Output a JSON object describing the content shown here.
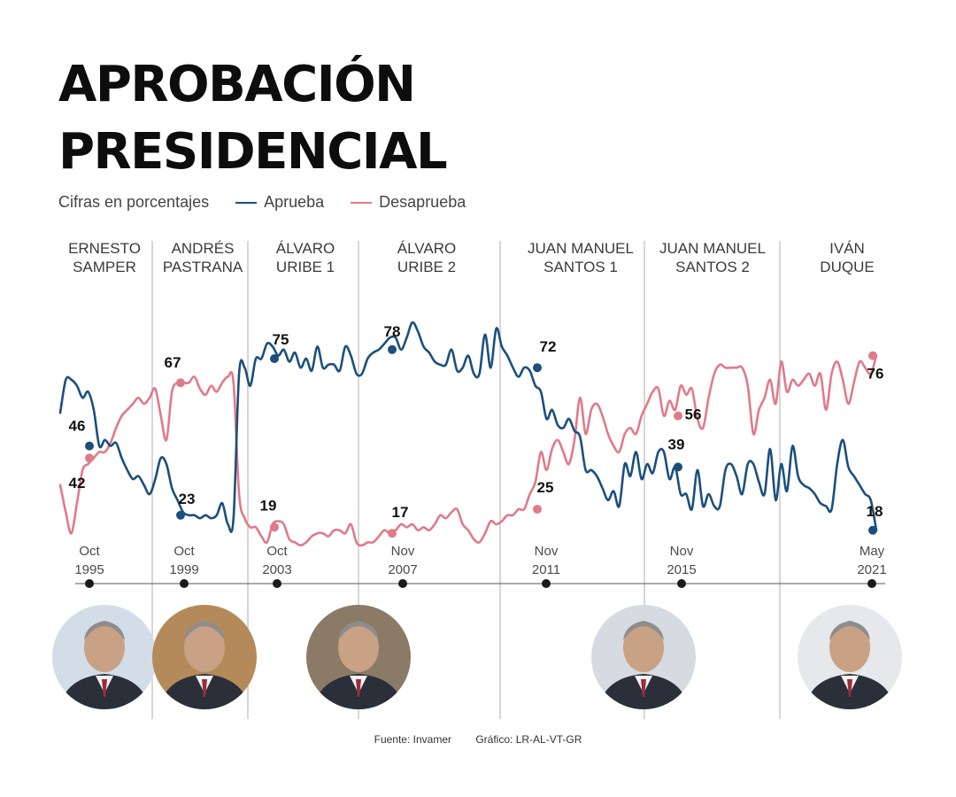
{
  "header": {
    "title_line1": "APROBACIÓN",
    "title_line2": "PRESIDENCIAL"
  },
  "legend": {
    "units": "Cifras en porcentajes",
    "approve": "Aprueba",
    "disapprove": "Desaprueba"
  },
  "colors": {
    "approve": "#1c4f7c",
    "disapprove": "#e07a8a",
    "grid": "#9a9a9a",
    "axis": "#555555"
  },
  "presidents": [
    {
      "line1": "ERNESTO",
      "line2": "SAMPER"
    },
    {
      "line1": "ANDRÉS",
      "line2": "PASTRANA"
    },
    {
      "line1": "ÁLVARO",
      "line2": "URIBE 1"
    },
    {
      "line1": "ÁLVARO",
      "line2": "URIBE 2"
    },
    {
      "line1": "JUAN MANUEL",
      "line2": "SANTOS 1"
    },
    {
      "line1": "JUAN MANUEL",
      "line2": "SANTOS 2"
    },
    {
      "line1": "IVÁN",
      "line2": "DUQUE"
    }
  ],
  "photos": [
    {
      "name": "Ernesto Samper",
      "bg": "#d3dde8"
    },
    {
      "name": "Andrés Pastrana",
      "bg": "#b58a5a"
    },
    {
      "name": "Álvaro Uribe",
      "bg": "#8a7a66"
    },
    {
      "name": "Juan Manuel Santos",
      "bg": "#d6dbe2"
    },
    {
      "name": "Iván Duque",
      "bg": "#e6e8eb"
    }
  ],
  "chart_data": {
    "type": "line",
    "xlabel": "",
    "ylabel": "",
    "ylim": [
      0,
      100
    ],
    "x_ticks": [
      {
        "month": "Oct",
        "year": "1995"
      },
      {
        "month": "Oct",
        "year": "1999"
      },
      {
        "month": "Oct",
        "year": "2003"
      },
      {
        "month": "Nov",
        "year": "2007"
      },
      {
        "month": "Nov",
        "year": "2011"
      },
      {
        "month": "Nov",
        "year": "2015"
      },
      {
        "month": "May",
        "year": "2021"
      }
    ],
    "annotated_points": [
      {
        "date": "Oct 1995",
        "aprueba": 46,
        "desaprueba": 42
      },
      {
        "date": "Oct 1999",
        "aprueba": 23,
        "desaprueba": 67
      },
      {
        "date": "Oct 2003",
        "aprueba": 75,
        "desaprueba": 19
      },
      {
        "date": "Nov 2007",
        "aprueba": 78,
        "desaprueba": 17
      },
      {
        "date": "Nov 2011",
        "aprueba": 72,
        "desaprueba": 25
      },
      {
        "date": "Nov 2015",
        "aprueba": 39,
        "desaprueba": 56
      },
      {
        "date": "May 2021",
        "aprueba": 18,
        "desaprueba": 76
      }
    ],
    "series": [
      {
        "name": "Aprueba",
        "values": [
          57,
          68,
          68,
          66,
          62,
          64,
          58,
          46,
          48,
          46,
          47,
          42,
          38,
          35,
          36,
          33,
          30,
          35,
          42,
          40,
          32,
          28,
          24,
          23,
          23,
          22,
          23,
          22,
          23,
          27,
          20,
          22,
          70,
          72,
          66,
          75,
          75,
          80,
          79,
          76,
          78,
          74,
          77,
          72,
          75,
          71,
          79,
          72,
          73,
          73,
          71,
          79,
          76,
          70,
          70,
          75,
          77,
          78,
          80,
          82,
          82,
          78,
          82,
          87,
          84,
          79,
          77,
          74,
          73,
          73,
          78,
          71,
          72,
          76,
          70,
          70,
          83,
          72,
          85,
          79,
          76,
          72,
          69,
          72,
          71,
          66,
          64,
          55,
          58,
          53,
          52,
          55,
          51,
          49,
          38,
          38,
          36,
          32,
          28,
          31,
          26,
          40,
          36,
          44,
          35,
          40,
          37,
          44,
          44,
          35,
          39,
          30,
          30,
          25,
          38,
          26,
          30,
          26,
          26,
          38,
          40,
          36,
          30,
          40,
          40,
          34,
          30,
          45,
          28,
          40,
          31,
          46,
          36,
          33,
          32,
          30,
          27,
          26,
          25,
          40,
          48,
          39,
          36,
          33,
          30,
          28,
          18
        ]
      },
      {
        "name": "Desaprueba",
        "values": [
          33,
          24,
          17,
          27,
          38,
          40,
          42,
          44,
          44,
          47,
          52,
          56,
          58,
          60,
          62,
          60,
          62,
          65,
          56,
          48,
          64,
          67,
          67,
          67,
          69,
          65,
          63,
          66,
          64,
          67,
          69,
          67,
          30,
          22,
          19,
          19,
          16,
          14,
          20,
          21,
          20,
          15,
          14,
          13,
          14,
          16,
          17,
          17,
          16,
          18,
          18,
          17,
          20,
          14,
          13,
          14,
          14,
          16,
          18,
          17,
          18,
          20,
          19,
          20,
          18,
          19,
          18,
          20,
          23,
          22,
          24,
          25,
          20,
          18,
          15,
          14,
          17,
          21,
          20,
          21,
          23,
          23,
          25,
          25,
          30,
          34,
          44,
          38,
          45,
          48,
          44,
          40,
          48,
          62,
          50,
          58,
          60,
          56,
          50,
          46,
          44,
          50,
          52,
          50,
          56,
          60,
          64,
          65,
          56,
          61,
          58,
          66,
          63,
          65,
          55,
          52,
          62,
          70,
          73,
          72,
          72,
          72,
          72,
          66,
          50,
          58,
          62,
          68,
          60,
          74,
          64,
          68,
          66,
          68,
          70,
          66,
          70,
          58,
          70,
          74,
          68,
          60,
          67,
          74,
          72,
          70,
          76
        ]
      }
    ]
  },
  "footer": {
    "source": "Fuente: Invamer",
    "credit": "Gráfico: LR-AL-VT-GR"
  }
}
